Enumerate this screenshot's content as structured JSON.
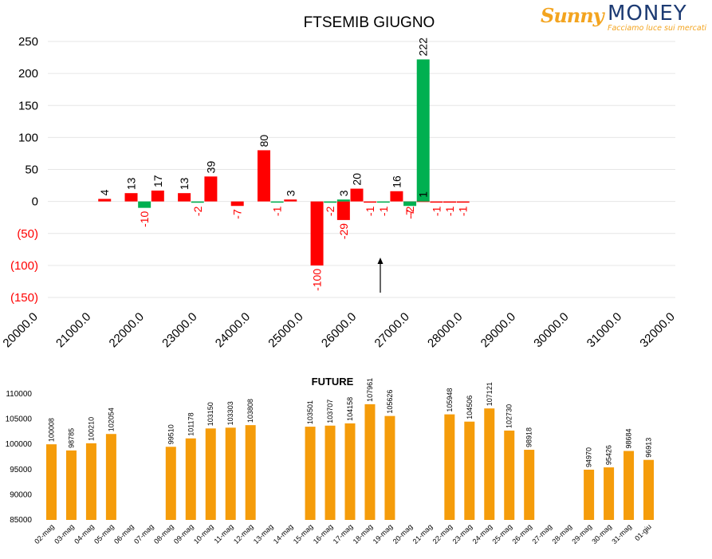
{
  "logo": {
    "brand_part1": "Sunny",
    "brand_part2": "MONEY",
    "tagline": "Facciamo luce sui mercati"
  },
  "chart_data": [
    {
      "type": "bar",
      "title": "FTSEMIB GIUGNO",
      "xlabel": "",
      "ylabel": "",
      "xlim": [
        20000,
        32000
      ],
      "ylim": [
        -150,
        250
      ],
      "x_ticks": [
        "20000.0",
        "21000.0",
        "22000.0",
        "23000.0",
        "24000.0",
        "25000.0",
        "26000.0",
        "27000.0",
        "28000.0",
        "29000.0",
        "30000.0",
        "31000.0",
        "32000.0"
      ],
      "y_ticks": [
        "250",
        "200",
        "150",
        "100",
        "50",
        "0",
        "(50)",
        "(100)",
        "(150)"
      ],
      "grid": true,
      "annotation": "arrow at 26250 pointing up",
      "series": [
        {
          "color": "#ff0000",
          "x": [
            21250,
            21750,
            22250,
            22750,
            23250,
            23750,
            24250,
            24750,
            25250,
            25750,
            26000,
            26250,
            26750,
            27000,
            27250,
            27500,
            27750,
            28000
          ],
          "values": [
            4,
            13,
            17,
            13,
            39,
            -7,
            80,
            3,
            -100,
            -29,
            20,
            -1,
            16,
            -2,
            1,
            -1,
            -1,
            -1
          ],
          "labels": [
            "4",
            "13",
            "17",
            "13",
            "39",
            "-7",
            "80",
            "3",
            "-100",
            "-29",
            "20",
            "-1",
            "16",
            "-2",
            "1",
            "-1",
            "-1",
            "-1"
          ]
        },
        {
          "color": "#00b050",
          "x": [
            22000,
            23000,
            24500,
            25500,
            25750,
            26500,
            27000,
            27250
          ],
          "values": [
            -10,
            -2,
            -1,
            -2,
            3,
            -1,
            -7,
            222
          ],
          "labels": [
            "-10",
            "-2",
            "-1",
            "-2",
            "3",
            "-1",
            "-7",
            "222"
          ]
        }
      ]
    },
    {
      "type": "bar",
      "title": "FUTURE",
      "xlabel": "",
      "ylabel": "",
      "ylim": [
        85000,
        110000
      ],
      "y_ticks": [
        "110000",
        "105000",
        "100000",
        "95000",
        "90000",
        "85000"
      ],
      "color": "#f59c0a",
      "categories": [
        "02-mag",
        "03-mag",
        "04-mag",
        "05-mag",
        "06-mag",
        "07-mag",
        "08-mag",
        "09-mag",
        "10-mag",
        "11-mag",
        "12-mag",
        "13-mag",
        "14-mag",
        "15-mag",
        "16-mag",
        "17-mag",
        "18-mag",
        "19-mag",
        "20-mag",
        "21-mag",
        "22-mag",
        "23-mag",
        "24-mag",
        "25-mag",
        "26-mag",
        "27-mag",
        "28-mag",
        "29-mag",
        "30-mag",
        "31-mag",
        "01-giu"
      ],
      "values": [
        100008,
        98785,
        100210,
        102054,
        null,
        null,
        99510,
        101178,
        103150,
        103303,
        103808,
        null,
        null,
        103501,
        103707,
        104158,
        107961,
        105626,
        null,
        null,
        105948,
        104506,
        107121,
        102730,
        98918,
        null,
        null,
        94970,
        95426,
        98684,
        96913
      ]
    }
  ]
}
